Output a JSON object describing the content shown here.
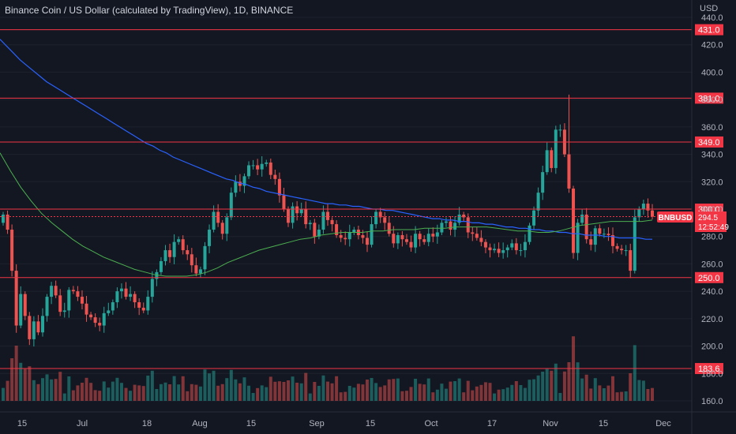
{
  "header": {
    "title": "Binance Coin / US Dollar (calculated by TradingView), 1D, BINANCE"
  },
  "axis": {
    "unit": "USD"
  },
  "symbol_label": "BNBUSD",
  "price_label": "294.5",
  "countdown": "12:52:49",
  "colors": {
    "bg": "#131722",
    "up": "#26a69a",
    "down": "#ef5350",
    "ma_long": "#2962ff",
    "ma_short": "#4caf50",
    "hline": "#f23645",
    "grid": "#1e222d"
  },
  "chart_data": {
    "type": "candlestick",
    "title": "Binance Coin / US Dollar (calculated by TradingView), 1D, BINANCE",
    "y_label": "USD",
    "ylim": [
      160,
      440
    ],
    "y_ticks": [
      160.0,
      180.0,
      200.0,
      220.0,
      240.0,
      260.0,
      280.0,
      300.0,
      320.0,
      340.0,
      360.0,
      380.0,
      400.0,
      420.0,
      440.0
    ],
    "x_ticks": [
      "15",
      "Jul",
      "18",
      "Aug",
      "15",
      "Sep",
      "15",
      "Oct",
      "17",
      "Nov",
      "15",
      "Dec"
    ],
    "horizontal_lines": [
      431.0,
      381.0,
      349.0,
      300.0,
      250.0,
      183.6
    ],
    "current_price": 294.5,
    "ohlc_close": [
      296,
      285,
      255,
      215,
      238,
      222,
      205,
      218,
      210,
      222,
      236,
      244,
      237,
      225,
      226,
      241,
      240,
      236,
      231,
      223,
      221,
      217,
      215,
      224,
      226,
      232,
      240,
      242,
      236,
      238,
      232,
      228,
      226,
      236,
      249,
      254,
      262,
      270,
      265,
      276,
      278,
      270,
      267,
      259,
      253,
      256,
      273,
      285,
      298,
      290,
      282,
      294,
      312,
      320,
      317,
      324,
      332,
      332,
      329,
      333,
      334,
      325,
      322,
      310,
      300,
      290,
      302,
      297,
      300,
      289,
      290,
      280,
      285,
      298,
      292,
      289,
      281,
      279,
      278,
      283,
      285,
      281,
      279,
      274,
      289,
      298,
      294,
      290,
      282,
      275,
      281,
      278,
      276,
      272,
      282,
      278,
      276,
      282,
      280,
      283,
      290,
      291,
      285,
      290,
      296,
      294,
      283,
      282,
      279,
      276,
      272,
      270,
      271,
      268,
      270,
      272,
      275,
      270,
      270,
      276,
      288,
      299,
      312,
      327,
      343,
      330,
      358,
      358,
      340,
      315,
      268,
      290,
      296,
      278,
      274,
      286,
      282,
      282,
      281,
      273,
      271,
      270,
      270,
      255,
      294,
      300,
      304,
      299,
      294.5
    ],
    "series": [
      {
        "name": "MA long",
        "values": [
          424,
          419,
          414,
          409,
          405,
          401,
          397,
          393,
          390,
          387,
          384,
          381,
          378,
          375,
          372,
          369,
          366,
          363,
          360,
          357,
          354,
          351,
          348,
          346,
          343,
          341,
          338,
          336,
          334,
          332,
          330,
          328,
          326,
          324,
          322,
          321,
          319,
          318,
          316,
          315,
          313,
          312,
          311,
          310,
          309,
          308,
          307,
          306,
          305,
          304,
          304,
          303,
          303,
          302,
          302,
          301,
          300,
          300,
          299,
          299,
          298,
          297,
          296,
          295,
          294,
          293,
          293,
          292,
          292,
          291,
          291,
          290,
          290,
          289,
          289,
          288,
          287,
          287,
          286,
          286,
          285,
          285,
          284,
          284,
          283,
          283,
          282,
          282,
          281,
          281,
          281,
          280,
          280,
          279,
          279,
          279,
          279,
          278,
          278
        ]
      },
      {
        "name": "MA short",
        "values": [
          341,
          328,
          316,
          306,
          297,
          290,
          284,
          278,
          273,
          269,
          265,
          262,
          259,
          256,
          254,
          252,
          251,
          251,
          251,
          252,
          254,
          257,
          261,
          264,
          267,
          270,
          272,
          274,
          276,
          278,
          279,
          281,
          282,
          283,
          283,
          283,
          284,
          284,
          285,
          285,
          285,
          286,
          286,
          286,
          287,
          287,
          287,
          287,
          286,
          285,
          284,
          284,
          283,
          283,
          284,
          286,
          288,
          289,
          290,
          291,
          291,
          291,
          291,
          292
        ]
      }
    ]
  }
}
